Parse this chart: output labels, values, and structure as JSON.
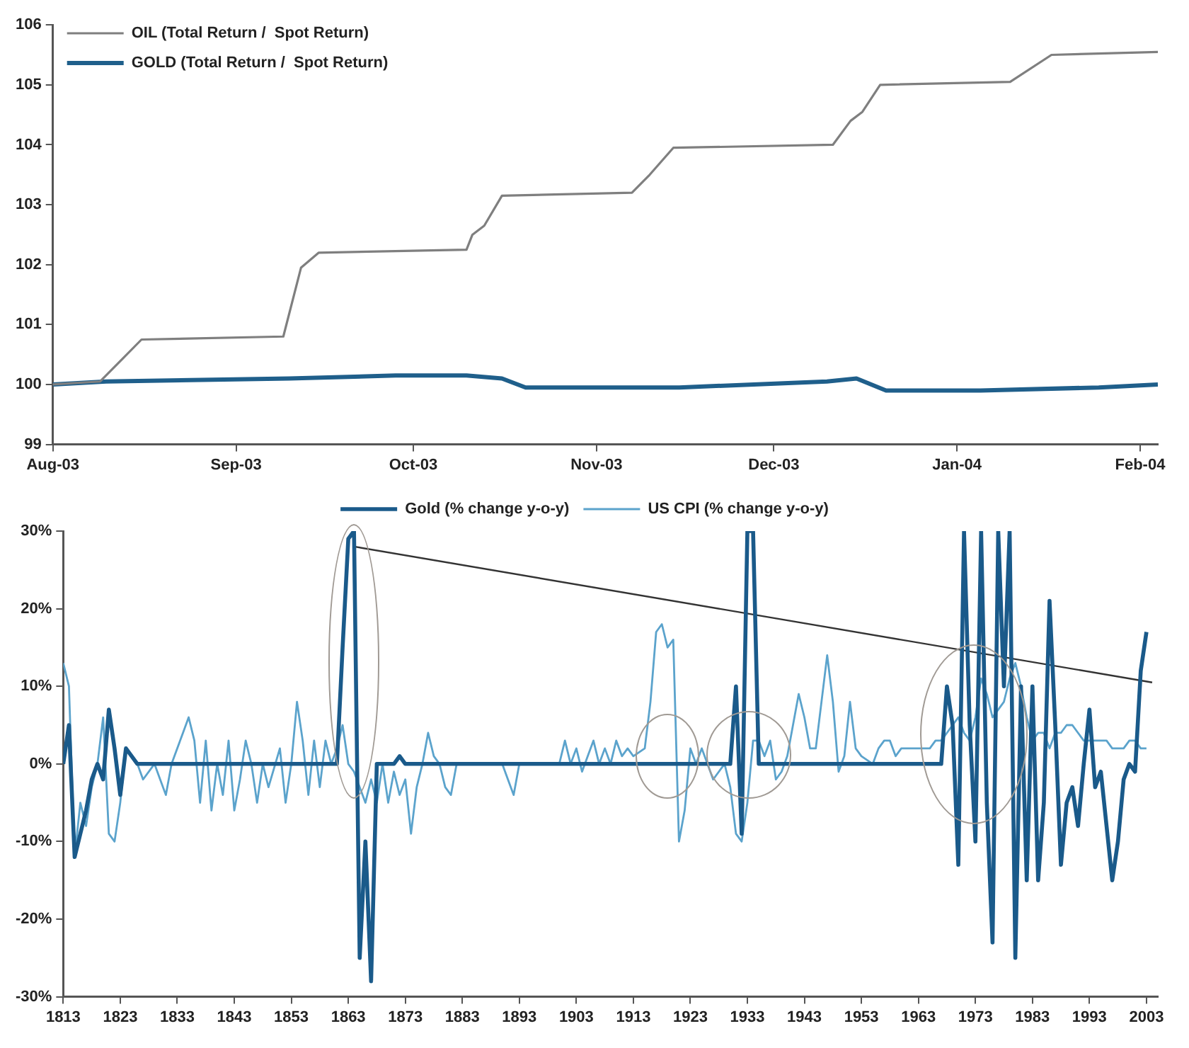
{
  "chart_data": [
    {
      "type": "line",
      "legend": "top left",
      "grid": false,
      "marker": "none",
      "xlim": [
        "2003-08-01",
        "2004-02-04"
      ],
      "xticks": [
        {
          "value": "2003-08-01",
          "label": "Aug-03"
        },
        {
          "value": "2003-09-01",
          "label": "Sep-03"
        },
        {
          "value": "2003-10-01",
          "label": "Oct-03"
        },
        {
          "value": "2003-11-01",
          "label": "Nov-03"
        },
        {
          "value": "2003-12-01",
          "label": "Dec-03"
        },
        {
          "value": "2004-01-01",
          "label": "Jan-04"
        },
        {
          "value": "2004-02-01",
          "label": "Feb-04"
        }
      ],
      "ylim": [
        99,
        106
      ],
      "yticks": [
        99,
        100,
        101,
        102,
        103,
        104,
        105,
        106
      ],
      "series": [
        {
          "name": "OIL (Total Return /  Spot Return)",
          "color": "#7f7f7f",
          "x": [
            "2003-08-01",
            "2003-08-09",
            "2003-08-16",
            "2003-09-09",
            "2003-09-12",
            "2003-09-15",
            "2003-10-10",
            "2003-10-11",
            "2003-10-13",
            "2003-10-16",
            "2003-11-07",
            "2003-11-10",
            "2003-11-14",
            "2003-12-11",
            "2003-12-14",
            "2003-12-16",
            "2003-12-19",
            "2004-01-10",
            "2004-01-17",
            "2004-02-04"
          ],
          "values": [
            100,
            100.05,
            100.75,
            100.8,
            101.95,
            102.2,
            102.25,
            102.5,
            102.65,
            103.15,
            103.2,
            103.5,
            103.95,
            104,
            104.4,
            104.55,
            105,
            105.05,
            105.5,
            105.55
          ]
        },
        {
          "name": "GOLD (Total Return /  Spot Return)",
          "color": "#1f5f8b",
          "x": [
            "2003-08-01",
            "2003-08-10",
            "2003-09-10",
            "2003-09-28",
            "2003-10-10",
            "2003-10-16",
            "2003-10-20",
            "2003-11-15",
            "2003-12-10",
            "2003-12-15",
            "2003-12-20",
            "2004-01-05",
            "2004-01-25",
            "2004-02-04"
          ],
          "values": [
            100,
            100.05,
            100.1,
            100.15,
            100.15,
            100.1,
            99.95,
            99.95,
            100.05,
            100.1,
            99.9,
            99.9,
            99.95,
            100
          ]
        }
      ]
    },
    {
      "type": "line",
      "legend": "top",
      "grid": false,
      "marker": "none",
      "xlim": [
        1813,
        2005
      ],
      "xticks": [
        1813,
        1823,
        1833,
        1843,
        1853,
        1863,
        1873,
        1883,
        1893,
        1903,
        1913,
        1923,
        1933,
        1943,
        1953,
        1963,
        1973,
        1983,
        1993,
        2003
      ],
      "ylim": [
        -30,
        30
      ],
      "yticks": [
        {
          "value": -30,
          "label": "-30%"
        },
        {
          "value": -20,
          "label": "-20%"
        },
        {
          "value": -10,
          "label": "-10%"
        },
        {
          "value": 0,
          "label": "0%"
        },
        {
          "value": 10,
          "label": "10%"
        },
        {
          "value": 20,
          "label": "20%"
        },
        {
          "value": 30,
          "label": "30%"
        }
      ],
      "series": [
        {
          "name": "Gold (% change y-o-y)",
          "color": "#1a5a8a",
          "x": [
            1813,
            1814,
            1815,
            1816,
            1817,
            1818,
            1819,
            1820,
            1821,
            1822,
            1823,
            1824,
            1825,
            1826,
            1861,
            1862,
            1863,
            1864,
            1865,
            1866,
            1867,
            1868,
            1871,
            1872,
            1873,
            1930,
            1931,
            1932,
            1933,
            1934,
            1935,
            1967,
            1968,
            1969,
            1970,
            1971,
            1972,
            1973,
            1974,
            1975,
            1976,
            1977,
            1978,
            1979,
            1980,
            1981,
            1982,
            1983,
            1984,
            1985,
            1986,
            1987,
            1988,
            1989,
            1990,
            1991,
            1992,
            1993,
            1994,
            1995,
            1996,
            1997,
            1998,
            1999,
            2000,
            2001,
            2002,
            2003
          ],
          "values": [
            0,
            5,
            -12,
            -9,
            -6,
            -2,
            0,
            -2,
            7,
            2,
            -4,
            2,
            1,
            0,
            0,
            15,
            29,
            30,
            -25,
            -10,
            -28,
            0,
            0,
            1,
            0,
            0,
            10,
            -9,
            30,
            30,
            0,
            0,
            10,
            5,
            -13,
            30,
            5,
            -10,
            30,
            -5,
            -23,
            30,
            10,
            30,
            -25,
            10,
            -15,
            10,
            -15,
            -5,
            21,
            5,
            -13,
            -5,
            -3,
            -8,
            0,
            7,
            -3,
            -1,
            -8,
            -15,
            -10,
            -2,
            0,
            -1,
            12,
            17
          ]
        },
        {
          "name": "US CPI (% change y-o-y)",
          "color": "#5ba3cc",
          "x": [
            1813,
            1814,
            1815,
            1816,
            1817,
            1818,
            1819,
            1820,
            1821,
            1822,
            1823,
            1824,
            1825,
            1826,
            1827,
            1829,
            1830,
            1831,
            1832,
            1834,
            1835,
            1836,
            1837,
            1838,
            1839,
            1840,
            1841,
            1842,
            1843,
            1844,
            1845,
            1846,
            1847,
            1848,
            1849,
            1851,
            1852,
            1853,
            1854,
            1855,
            1856,
            1857,
            1858,
            1859,
            1860,
            1861,
            1862,
            1863,
            1864,
            1865,
            1866,
            1867,
            1868,
            1869,
            1870,
            1871,
            1872,
            1873,
            1874,
            1875,
            1876,
            1877,
            1878,
            1879,
            1880,
            1881,
            1882,
            1890,
            1891,
            1892,
            1893,
            1900,
            1901,
            1902,
            1903,
            1904,
            1905,
            1906,
            1907,
            1908,
            1909,
            1910,
            1911,
            1912,
            1913,
            1915,
            1916,
            1917,
            1918,
            1919,
            1920,
            1921,
            1922,
            1923,
            1924,
            1925,
            1926,
            1927,
            1928,
            1929,
            1930,
            1931,
            1932,
            1933,
            1934,
            1935,
            1936,
            1937,
            1938,
            1939,
            1940,
            1941,
            1942,
            1943,
            1944,
            1945,
            1946,
            1947,
            1948,
            1949,
            1950,
            1951,
            1952,
            1953,
            1955,
            1956,
            1957,
            1958,
            1959,
            1960,
            1965,
            1966,
            1967,
            1968,
            1969,
            1970,
            1971,
            1972,
            1973,
            1974,
            1975,
            1976,
            1977,
            1978,
            1979,
            1980,
            1981,
            1982,
            1983,
            1984,
            1985,
            1986,
            1987,
            1988,
            1989,
            1990,
            1991,
            1992,
            1995,
            1996,
            1997,
            1998,
            1999,
            2000,
            2001,
            2002,
            2003
          ],
          "values": [
            13,
            10,
            -12,
            -5,
            -8,
            -3,
            0,
            6,
            -9,
            -10,
            -5,
            2,
            1,
            0,
            -2,
            0,
            -2,
            -4,
            0,
            4,
            6,
            3,
            -5,
            3,
            -6,
            0,
            -4,
            3,
            -6,
            -2,
            3,
            0,
            -5,
            0,
            -3,
            2,
            -5,
            0,
            8,
            3,
            -4,
            3,
            -3,
            3,
            0,
            2,
            5,
            0,
            -1,
            -3,
            -5,
            -2,
            -5,
            0,
            -5,
            -1,
            -4,
            -2,
            -9,
            -3,
            0,
            4,
            1,
            0,
            -3,
            -4,
            0,
            0,
            -2,
            -4,
            0,
            0,
            3,
            0,
            2,
            -1,
            1,
            3,
            0,
            2,
            0,
            3,
            1,
            2,
            1,
            2,
            8,
            17,
            18,
            15,
            16,
            -10,
            -6,
            2,
            0,
            2,
            0,
            -2,
            -1,
            0,
            -3,
            -9,
            -10,
            -5,
            3,
            3,
            1,
            3,
            -2,
            -1,
            1,
            5,
            9,
            6,
            2,
            2,
            8,
            14,
            8,
            -1,
            1,
            8,
            2,
            1,
            0,
            2,
            3,
            3,
            1,
            2,
            2,
            3,
            3,
            4,
            5,
            6,
            4,
            3,
            6,
            11,
            9,
            6,
            7,
            8,
            11,
            13,
            10,
            6,
            3,
            4,
            4,
            2,
            4,
            4,
            5,
            5,
            4,
            3,
            3,
            3,
            2,
            2,
            2,
            3,
            3,
            2,
            2
          ]
        },
        {
          "type": "line",
          "color": "#333333",
          "x": [
            1864,
            2004
          ],
          "values": [
            28,
            10.5
          ]
        }
      ]
    }
  ]
}
